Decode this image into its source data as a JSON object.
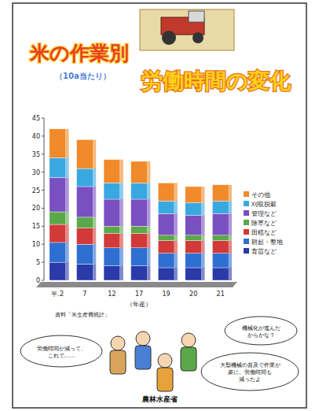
{
  "poster": {
    "title_1": "米の作業別",
    "subtitle": "（10a当たり）",
    "title_2": "労働時間の変化",
    "bubbles": [
      {
        "lines": [
          "労働時間が減って、",
          "これで……"
        ]
      },
      {
        "lines": [
          "機械化が進んだ",
          "からかな？"
        ]
      },
      {
        "lines": [
          "大型機械の普及で作業が",
          "楽に。労働時間も",
          "減ったよ"
        ]
      }
    ],
    "footer": "農林水産省"
  },
  "chart_data": {
    "type": "bar",
    "stacked": true,
    "legend": "right",
    "grid": false,
    "x_label": "（年産）",
    "source": "資料「米生産費統計」",
    "categories": [
      "平.2",
      "7",
      "12",
      "17",
      "19",
      "20",
      "21"
    ],
    "ylim": [
      0,
      45
    ],
    "yticks": [
      0,
      5,
      10,
      15,
      20,
      25,
      30,
      35,
      40,
      45
    ],
    "series": [
      {
        "name": "育苗など",
        "color": "#2a3aa8",
        "values": [
          5,
          4.5,
          4,
          4,
          3.5,
          3.5,
          3.5
        ]
      },
      {
        "name": "耕起・整地",
        "color": "#2e6fd1",
        "values": [
          5.5,
          5.5,
          5,
          5,
          4,
          4,
          4
        ]
      },
      {
        "name": "田植など",
        "color": "#d23a3a",
        "values": [
          5,
          4.5,
          4,
          4,
          3.5,
          3.5,
          3.5
        ]
      },
      {
        "name": "除草など",
        "color": "#5aa84a",
        "values": [
          3.5,
          3,
          2,
          2,
          1.5,
          1.5,
          1.5
        ]
      },
      {
        "name": "管理など",
        "color": "#7a4fc0",
        "values": [
          9.5,
          8.5,
          7.5,
          7.5,
          6,
          5.5,
          6
        ]
      },
      {
        "name": "刈取脱穀",
        "color": "#3aa8e0",
        "values": [
          5.5,
          5,
          4.5,
          4.5,
          3.5,
          3.5,
          3.5
        ]
      },
      {
        "name": "その他",
        "color": "#f08a2a",
        "values": [
          8,
          8,
          6.5,
          6,
          5,
          4.5,
          4.5
        ]
      }
    ]
  }
}
